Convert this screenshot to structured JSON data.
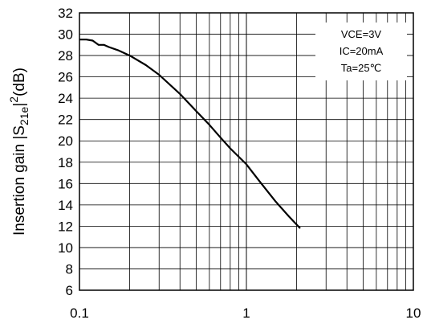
{
  "chart_data": {
    "type": "line",
    "title": "",
    "xlabel": "",
    "ylabel": {
      "prefix": "Insertion gain |S",
      "subscript": "21e",
      "mid": "|",
      "superscript": "2",
      "suffix": "(dB)"
    },
    "x_scale": "log",
    "xlim": [
      0.1,
      10
    ],
    "ylim": [
      6,
      32
    ],
    "x_tick_labels": [
      {
        "value": 0.1,
        "label": "0.1"
      },
      {
        "value": 1,
        "label": "1"
      },
      {
        "value": 10,
        "label": "10"
      }
    ],
    "y_ticks": [
      6,
      8,
      10,
      12,
      14,
      16,
      18,
      20,
      22,
      24,
      26,
      28,
      30,
      32
    ],
    "grid": true,
    "legend_placement": "top-right",
    "conditions": [
      "VCE=3V",
      "IC=20mA",
      "Ta=25℃"
    ],
    "series": [
      {
        "x": [
          0.1,
          0.11,
          0.12,
          0.13,
          0.14,
          0.15,
          0.17,
          0.2,
          0.25,
          0.3,
          0.4,
          0.5,
          0.6,
          0.7,
          0.8,
          1.0,
          1.2,
          1.5,
          1.8,
          2.1
        ],
        "y": [
          29.5,
          29.5,
          29.4,
          29.0,
          29.0,
          28.8,
          28.5,
          28.0,
          27.1,
          26.2,
          24.4,
          22.8,
          21.5,
          20.3,
          19.3,
          17.8,
          16.2,
          14.3,
          12.9,
          11.8
        ]
      }
    ],
    "colors": {
      "line": "#000000",
      "grid": "#000000",
      "axis": "#000000"
    }
  }
}
